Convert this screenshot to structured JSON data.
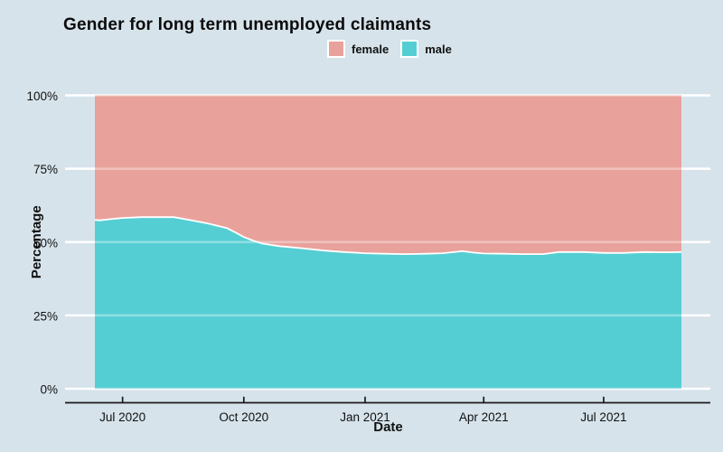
{
  "title": "Gender for long term unemployed claimants",
  "legend": {
    "items": [
      {
        "label": "female",
        "color": "#e9a19b"
      },
      {
        "label": "male",
        "color": "#55ced3"
      }
    ]
  },
  "axes": {
    "x": {
      "title": "Date",
      "ticks": [
        {
          "label": "Jul 2020",
          "date": "2020-07-01"
        },
        {
          "label": "Oct 2020",
          "date": "2020-10-01"
        },
        {
          "label": "Jan 2021",
          "date": "2021-01-01"
        },
        {
          "label": "Apr 2021",
          "date": "2021-04-01"
        },
        {
          "label": "Jul 2021",
          "date": "2021-07-01"
        }
      ]
    },
    "y": {
      "title": "Percentage",
      "ticks": [
        {
          "label": "0%",
          "value": 0
        },
        {
          "label": "25%",
          "value": 25
        },
        {
          "label": "50%",
          "value": 50
        },
        {
          "label": "75%",
          "value": 75
        },
        {
          "label": "100%",
          "value": 100
        }
      ]
    }
  },
  "colors": {
    "background": "#d6e3eb",
    "grid": "#ffffff",
    "axis_line": "#1a1a1a",
    "text": "#111111",
    "female": "#e9a19b",
    "male": "#55ced3",
    "series_outline": "#ffffff"
  },
  "chart_data": {
    "type": "area",
    "stacked": true,
    "normalized_to_100_percent": true,
    "title": "Gender for long term unemployed claimants",
    "xlabel": "Date",
    "ylabel": "Percentage",
    "ylim": [
      0,
      100
    ],
    "x_range": [
      "2020-06-10",
      "2021-08-29"
    ],
    "grid": "on",
    "legend_position": "top-center",
    "series": [
      {
        "name": "male",
        "color": "#55ced3",
        "unit": "percent",
        "points": [
          [
            "2020-06-10",
            57.5
          ],
          [
            "2020-06-14",
            57.4
          ],
          [
            "2020-06-22",
            57.8
          ],
          [
            "2020-07-01",
            58.2
          ],
          [
            "2020-07-15",
            58.5
          ],
          [
            "2020-08-09",
            58.5
          ],
          [
            "2020-08-21",
            57.5
          ],
          [
            "2020-09-04",
            56.3
          ],
          [
            "2020-09-18",
            54.8
          ],
          [
            "2020-09-25",
            53.2
          ],
          [
            "2020-10-01",
            51.7
          ],
          [
            "2020-10-08",
            50.5
          ],
          [
            "2020-10-15",
            49.5
          ],
          [
            "2020-10-28",
            48.6
          ],
          [
            "2020-11-16",
            47.8
          ],
          [
            "2020-12-01",
            47.1
          ],
          [
            "2020-12-16",
            46.6
          ],
          [
            "2021-01-01",
            46.2
          ],
          [
            "2021-01-16",
            46.0
          ],
          [
            "2021-02-01",
            45.9
          ],
          [
            "2021-02-16",
            46.0
          ],
          [
            "2021-03-01",
            46.2
          ],
          [
            "2021-03-16",
            46.9
          ],
          [
            "2021-03-24",
            46.4
          ],
          [
            "2021-04-01",
            46.1
          ],
          [
            "2021-04-16",
            46.0
          ],
          [
            "2021-05-01",
            45.9
          ],
          [
            "2021-05-16",
            45.9
          ],
          [
            "2021-05-28",
            46.6
          ],
          [
            "2021-06-16",
            46.6
          ],
          [
            "2021-07-01",
            46.3
          ],
          [
            "2021-07-16",
            46.3
          ],
          [
            "2021-08-01",
            46.6
          ],
          [
            "2021-08-16",
            46.5
          ],
          [
            "2021-08-29",
            46.6
          ]
        ]
      },
      {
        "name": "female",
        "color": "#e9a19b",
        "unit": "percent",
        "derived": "100 minus male (stacked to 100%)"
      }
    ]
  }
}
